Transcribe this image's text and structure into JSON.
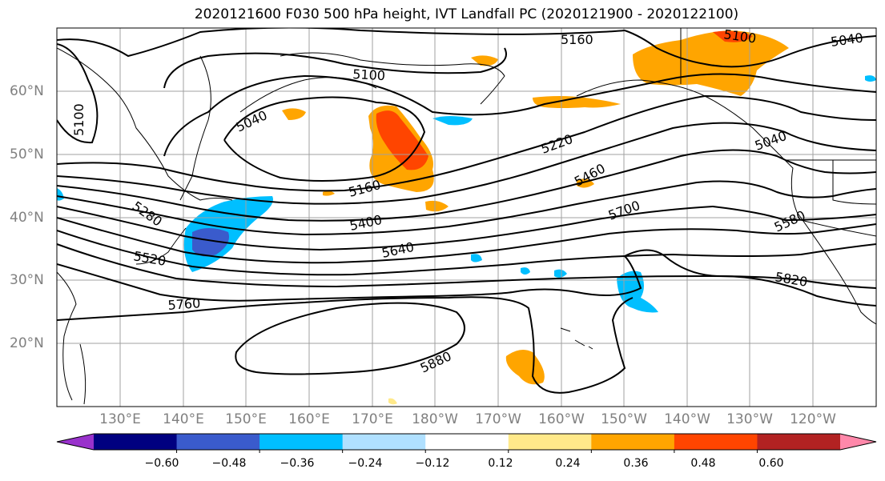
{
  "title": "2020121600 F030 500 hPa height, IVT Landfall PC (2020121900 - 2020122100)",
  "lat_labels": [
    "60°N",
    "50°N",
    "40°N",
    "30°N",
    "20°N"
  ],
  "lon_labels": [
    "130°E",
    "140°E",
    "150°E",
    "160°E",
    "170°E",
    "180°W",
    "170°W",
    "160°W",
    "150°W",
    "140°W",
    "130°W",
    "120°W"
  ],
  "contour_labels": [
    "5160",
    "5100",
    "5040",
    "5100",
    "5100",
    "5040",
    "5220",
    "5160",
    "5460",
    "5280",
    "5400",
    "5700",
    "5580",
    "5520",
    "5640",
    "5820",
    "5760",
    "5880",
    "5040"
  ],
  "colorbar": {
    "colors": [
      "#9932cc",
      "#000080",
      "#3a5bcc",
      "#00bfff",
      "#b0e0ff",
      "#ffffff",
      "#ffe98a",
      "#ffa500",
      "#ff4500",
      "#b22222",
      "#ff88aa"
    ],
    "tick_labels": [
      "−0.60",
      "−0.48",
      "−0.36",
      "−0.24",
      "−0.12",
      "0.12",
      "0.24",
      "0.36",
      "0.48",
      "0.60"
    ]
  }
}
